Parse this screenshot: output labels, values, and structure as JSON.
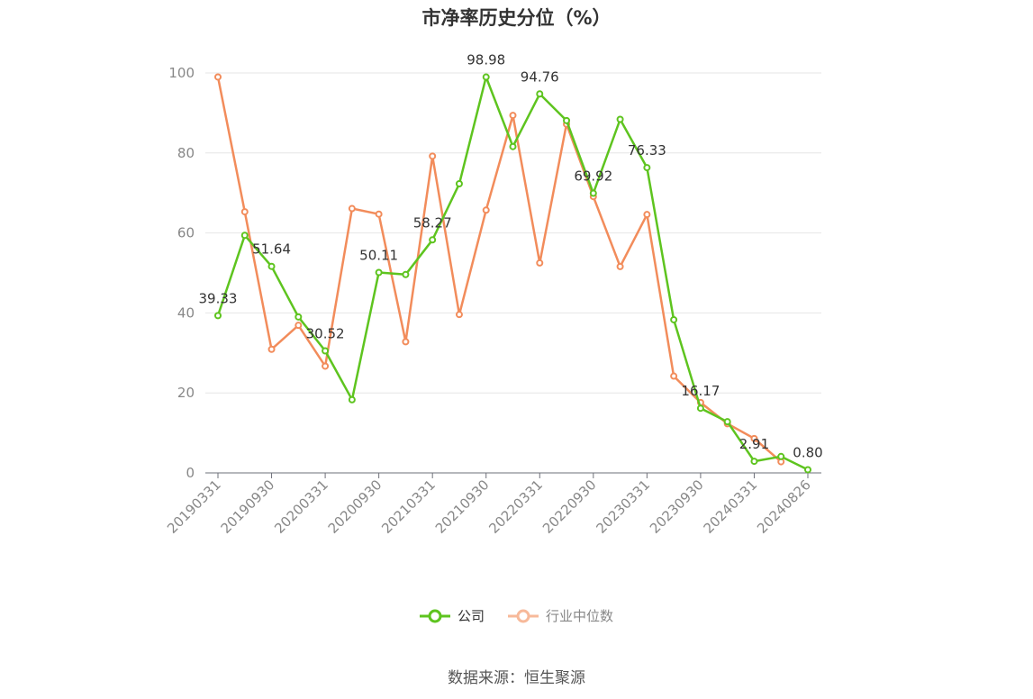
{
  "chart_data": {
    "type": "line",
    "title": "市净率历史分位（%）",
    "ylim": [
      0,
      100
    ],
    "yticks": [
      0,
      20,
      40,
      60,
      80,
      100
    ],
    "x_tick_labels": [
      "20190331",
      "20190930",
      "20200331",
      "20200930",
      "20210331",
      "20210930",
      "20220331",
      "20220930",
      "20230331",
      "20230930",
      "20240331",
      "20240826"
    ],
    "x": [
      "20190331",
      "20190630",
      "20190930",
      "20191231",
      "20200331",
      "20200630",
      "20200930",
      "20201231",
      "20210331",
      "20210630",
      "20210930",
      "20211231",
      "20220331",
      "20220630",
      "20220930",
      "20221231",
      "20230331",
      "20230630",
      "20230930",
      "20231231",
      "20240331",
      "20240630",
      "20240826"
    ],
    "series": [
      {
        "name": "公司",
        "color": "#5ec41f",
        "values": [
          39.33,
          59.4,
          51.64,
          39.0,
          30.52,
          18.3,
          50.11,
          49.6,
          58.27,
          72.3,
          98.98,
          81.6,
          94.76,
          88.1,
          69.92,
          88.4,
          76.33,
          38.3,
          16.17,
          12.8,
          2.91,
          4.1,
          0.8
        ],
        "labels": {
          "0": "39.33",
          "2": "51.64",
          "4": "30.52",
          "6": "50.11",
          "8": "58.27",
          "10": "98.98",
          "12": "94.76",
          "14": "69.92",
          "16": "76.33",
          "18": "16.17",
          "20": "2.91",
          "22": "0.80"
        }
      },
      {
        "name": "行业中位数",
        "color": "#f28c5b",
        "values": [
          99.0,
          65.3,
          30.9,
          36.9,
          26.7,
          66.1,
          64.7,
          32.8,
          79.2,
          39.6,
          65.7,
          89.4,
          52.5,
          87.2,
          69.1,
          51.6,
          64.6,
          24.2,
          17.6,
          12.3,
          8.6,
          2.8,
          null
        ]
      }
    ],
    "legend_position": "bottom",
    "grid": "horizontal"
  },
  "legend": {
    "company": "公司",
    "industry": "行业中位数"
  },
  "source": "数据来源：恒生聚源"
}
